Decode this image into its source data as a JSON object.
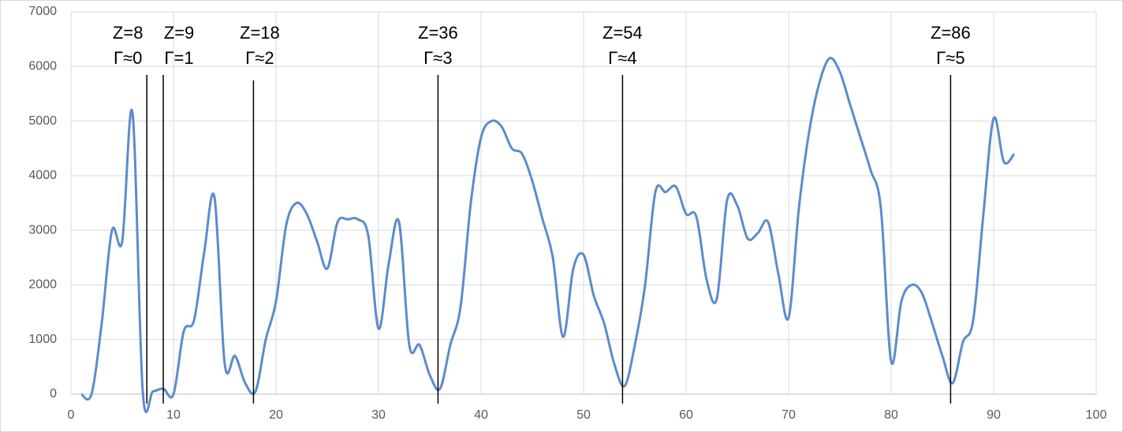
{
  "chart_data": {
    "type": "line",
    "x": [
      1,
      2,
      3,
      4,
      5,
      6,
      7,
      8,
      9,
      10,
      11,
      12,
      13,
      14,
      15,
      16,
      17,
      18,
      19,
      20,
      21,
      22,
      23,
      24,
      25,
      26,
      27,
      28,
      29,
      30,
      31,
      32,
      33,
      34,
      35,
      36,
      37,
      38,
      39,
      40,
      41,
      42,
      43,
      44,
      45,
      46,
      47,
      48,
      49,
      50,
      51,
      52,
      53,
      54,
      55,
      56,
      57,
      58,
      59,
      60,
      61,
      62,
      63,
      64,
      65,
      66,
      67,
      68,
      69,
      70,
      71,
      72,
      73,
      74,
      75,
      76,
      77,
      78,
      79,
      80,
      81,
      82,
      83,
      84,
      85,
      86,
      87,
      88,
      89,
      90,
      91,
      92
    ],
    "series": [
      {
        "color": "#5b8ccc",
        "values": [
          0,
          0,
          1300,
          3000,
          2800,
          5150,
          50,
          50,
          100,
          0,
          1150,
          1350,
          2600,
          3600,
          550,
          700,
          200,
          50,
          1000,
          1700,
          3100,
          3500,
          3300,
          2800,
          2300,
          3150,
          3200,
          3200,
          2900,
          1200,
          2400,
          3150,
          900,
          900,
          350,
          100,
          900,
          1600,
          3500,
          4700,
          5000,
          4900,
          4500,
          4400,
          3900,
          3200,
          2500,
          1050,
          2300,
          2550,
          1800,
          1300,
          550,
          150,
          900,
          2000,
          3700,
          3700,
          3800,
          3300,
          3250,
          2100,
          1750,
          3550,
          3450,
          2850,
          2950,
          3150,
          2200,
          1400,
          3400,
          4800,
          5700,
          6150,
          5900,
          5300,
          4700,
          4100,
          3400,
          600,
          1700,
          2000,
          1850,
          1300,
          700,
          200,
          950,
          1350,
          3300,
          5050,
          4250,
          4400
        ]
      }
    ],
    "xlim": [
      0,
      100
    ],
    "xticks": [
      0,
      10,
      20,
      30,
      40,
      50,
      60,
      70,
      80,
      90,
      100
    ],
    "ylim": [
      0,
      7000
    ],
    "yticks": [
      0,
      1000,
      2000,
      3000,
      4000,
      5000,
      6000,
      7000
    ],
    "grid": true,
    "annotations": [
      {
        "x": 7.4,
        "lines": [
          "Z=8",
          "Γ≈0"
        ]
      },
      {
        "x": 9,
        "lines": [
          "Z=9",
          "Γ=1"
        ]
      },
      {
        "x": 17.8,
        "lines": [
          "Z=18",
          "Γ≈2"
        ]
      },
      {
        "x": 35.8,
        "lines": [
          "Z=36",
          "Γ≈3"
        ]
      },
      {
        "x": 53.8,
        "lines": [
          "Z=54",
          "Γ≈4"
        ]
      },
      {
        "x": 85.8,
        "lines": [
          "Z=86",
          "Γ≈5"
        ]
      }
    ]
  }
}
